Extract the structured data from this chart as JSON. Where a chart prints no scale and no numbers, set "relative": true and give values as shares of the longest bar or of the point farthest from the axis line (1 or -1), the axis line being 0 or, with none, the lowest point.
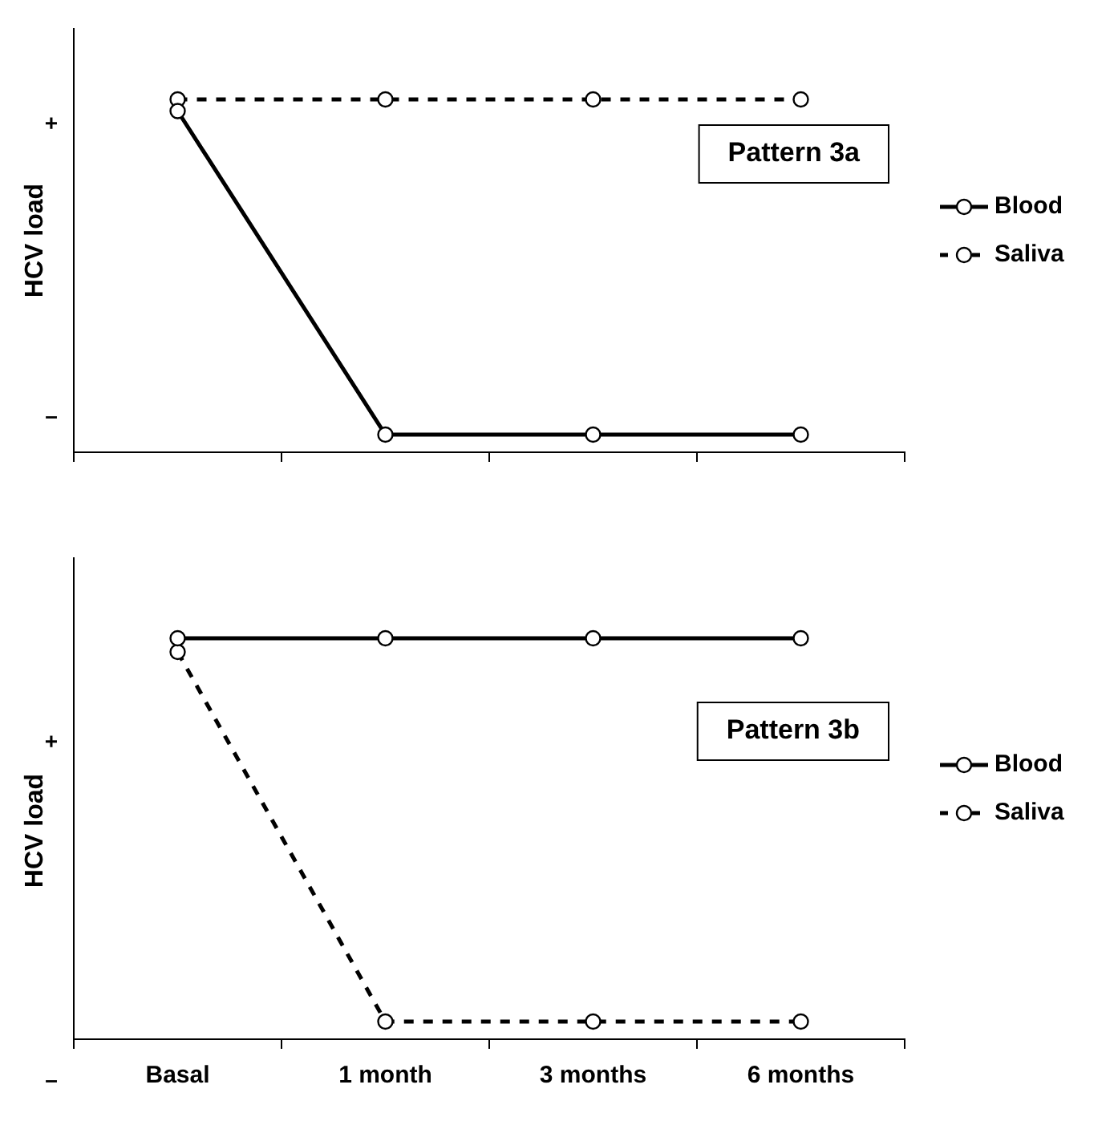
{
  "chart_data": [
    {
      "type": "line",
      "title": "Pattern 3a",
      "ylabel": "HCV load",
      "categories": [
        null,
        null,
        null,
        null
      ],
      "relative": true,
      "legend": "right",
      "marker": "circle",
      "grid": false,
      "annotations": [
        "+",
        "–"
      ],
      "series": [
        {
          "name": "Blood",
          "color": "#000000",
          "line_style": "solid",
          "values": [
            0.967,
            0.05,
            0.05,
            0.05
          ]
        },
        {
          "name": "Saliva",
          "color": "#000000",
          "line_style": "dashed",
          "values": [
            1,
            1,
            1,
            1
          ]
        }
      ]
    },
    {
      "type": "line",
      "title": "Pattern 3b",
      "ylabel": "HCV load",
      "categories": [
        "Basal",
        "1 month",
        "3 months",
        "6 months"
      ],
      "relative": true,
      "legend": "right",
      "marker": "circle",
      "grid": false,
      "annotations": [
        "+",
        "–"
      ],
      "series": [
        {
          "name": "Blood",
          "color": "#000000",
          "line_style": "solid",
          "values": [
            1,
            1,
            1,
            1
          ]
        },
        {
          "name": "Saliva",
          "color": "#000000",
          "line_style": "dashed",
          "values": [
            0.966,
            0.044,
            0.044,
            0.044
          ]
        }
      ]
    }
  ]
}
